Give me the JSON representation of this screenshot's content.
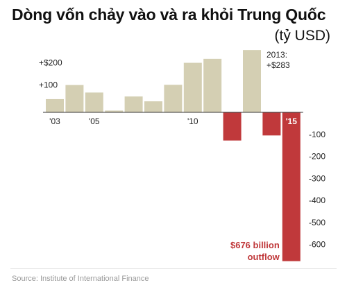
{
  "title": "Dòng vốn chảy vào và ra khỏi Trung Quốc",
  "unit": "(tỷ USD)",
  "source": "Source: Institute of International Finance",
  "colors": {
    "inflow": "#d4cfb3",
    "outflow": "#c0393b",
    "text": "#222222",
    "annotation_red": "#c0393b"
  },
  "chart_data": {
    "type": "bar",
    "categories": [
      "2003",
      "2004",
      "2005",
      "2006",
      "2007",
      "2008",
      "2009",
      "2010",
      "2011",
      "2012",
      "2013",
      "2014",
      "2015"
    ],
    "values": [
      60,
      124,
      90,
      8,
      72,
      50,
      125,
      225,
      243,
      -128,
      283,
      -105,
      -676
    ],
    "ylim": [
      -680,
      300
    ],
    "x_tick_labels": [
      {
        "category": "2003",
        "label": "'03"
      },
      {
        "category": "2005",
        "label": "'05"
      },
      {
        "category": "2010",
        "label": "'10"
      },
      {
        "category": "2015",
        "label": "'15"
      }
    ],
    "y_tick_labels_positive": [
      {
        "value": 100,
        "label": "+100"
      },
      {
        "value": 200,
        "label": "+$200"
      }
    ],
    "y_tick_labels_negative": [
      {
        "value": -100,
        "label": "-100"
      },
      {
        "value": -200,
        "label": "-200"
      },
      {
        "value": -300,
        "label": "-300"
      },
      {
        "value": -400,
        "label": "-400"
      },
      {
        "value": -500,
        "label": "-500"
      },
      {
        "value": -600,
        "label": "-600"
      }
    ],
    "annotations": [
      {
        "category": "2013",
        "lines": [
          "2013:",
          "+$283"
        ]
      },
      {
        "category": "2015",
        "lines": [
          "$676 billion",
          "outflow"
        ]
      }
    ]
  }
}
